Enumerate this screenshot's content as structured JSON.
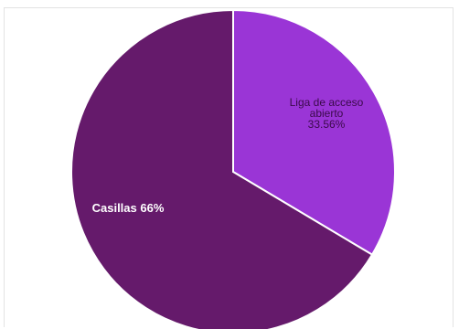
{
  "chart_data": {
    "type": "pie",
    "title": "",
    "slices": [
      {
        "label_lines": [
          "Liga de acceso",
          "abierto",
          "33.56%"
        ],
        "value": 33.56,
        "color": "#9a35d6"
      },
      {
        "label_lines": [
          "Casillas 66%"
        ],
        "value": 66.44,
        "color": "#651a6b"
      }
    ],
    "start_angle_deg": 0,
    "direction": "clockwise",
    "slice_separator_color": "#ffffff",
    "legend": "none"
  }
}
